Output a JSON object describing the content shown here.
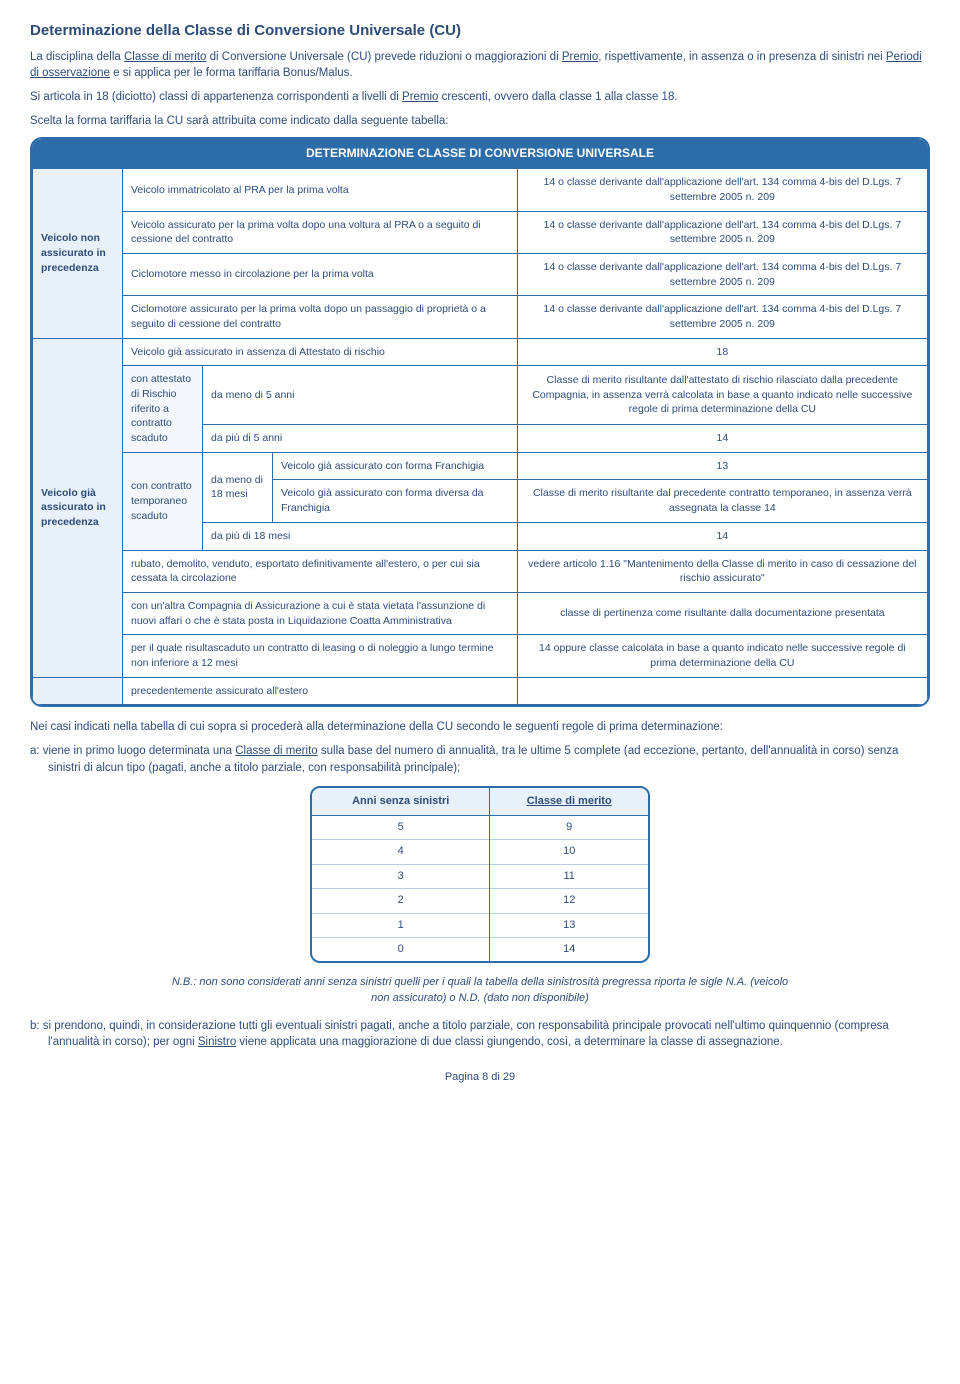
{
  "title": "Determinazione della Classe di Conversione Universale (CU)",
  "para1_a": "La disciplina della ",
  "para1_b": "Classe di merito",
  "para1_c": " di Conversione Universale (CU) prevede riduzioni o maggiorazioni di ",
  "para1_d": "Premio",
  "para1_e": ", rispettivamente, in assenza o in presenza di sinistri nei ",
  "para1_f": "Periodi di osservazione",
  "para1_g": " e si applica per le forma tariffaria Bonus/Malus.",
  "para2_a": "Si articola in 18 (diciotto) classi di appartenenza corrispondenti a livelli di ",
  "para2_b": "Premio",
  "para2_c": " crescenti, ovvero dalla classe 1 alla classe 18.",
  "para3": "Scelta la forma tariffaria la CU sarà attribuita come indicato dalla seguente tabella:",
  "tableHeader": "DETERMINAZIONE CLASSE DI CONVERSIONE UNIVERSALE",
  "sideA": "Veicolo non assicurato in precedenza",
  "sideB": "Veicolo già assicurato in precedenza",
  "rowA1_c": "Veicolo immatricolato al PRA per la prima volta",
  "rowA1_r": "14 o classe derivante dall'applicazione dell'art. 134 comma 4-bis del D.Lgs. 7 settembre 2005 n. 209",
  "rowA2_c": "Veicolo assicurato per la prima volta dopo una voltura al PRA o a seguito di cessione del contratto",
  "rowA2_r": "14 o classe derivante dall'applicazione dell'art. 134 comma 4-bis del D.Lgs. 7 settembre 2005 n. 209",
  "rowA3_c": "Ciclomotore messo in circolazione per la prima volta",
  "rowA3_r": "14 o classe derivante dall'applicazione dell'art. 134 comma 4-bis del D.Lgs. 7 settembre 2005 n. 209",
  "rowA4_c": "Ciclomotore assicurato per la prima volta dopo un passaggio di proprietà o a seguito di cessione del contratto",
  "rowA4_r": "14 o classe derivante dall'applicazione dell'art. 134 comma 4-bis del D.Lgs. 7 settembre 2005 n. 209",
  "rowB1_c": "Veicolo già assicurato in assenza di Attestato di rischio",
  "rowB1_r": "18",
  "subB2": "con attestato di Rischio riferito a contratto scaduto",
  "rowB2a_c": "da meno di 5 anni",
  "rowB2a_r": "Classe di merito risultante dall'attestato di rischio rilasciato dalla precedente Compagnia, in assenza verrà calcolata in base a quanto indicato nelle successive regole di prima determinazione della CU",
  "rowB2b_c": "da più di 5 anni",
  "rowB2b_r": "14",
  "subB3": "con contratto temporaneo scaduto",
  "rowB3a_c1": "da meno di 18 mesi",
  "rowB3a_c2": "Veicolo già assicurato con forma Franchigia",
  "rowB3a_r": "13",
  "rowB3b_c2": "Veicolo già assicurato con forma diversa da Franchigia",
  "rowB3b_r": "Classe di merito risultante dal precedente contratto temporaneo, in assenza verrà assegnata la classe 14",
  "rowB3c_c": "da più di 18 mesi",
  "rowB3c_r": "14",
  "rowB4_c": "rubato, demolito, venduto, esportato definitivamente all'estero, o per cui sia cessata la circolazione",
  "rowB4_r": "vedere articolo 1.16 \"Mantenimento della Classe di merito in caso di cessazione del rischio assicurato\"",
  "rowB5_c": "con un'altra Compagnia di Assicurazione a cui è stata vietata l'assunzione di nuovi affari o che è stata posta in Liquidazione Coatta Amministrativa",
  "rowB5_r": "classe di pertinenza come risultante dalla documentazione presentata",
  "rowB6_c": "per il quale risultascaduto un contratto di leasing o di noleggio a lungo termine non inferiore a 12 mesi",
  "rowB6_r": "14 oppure classe calcolata in base a quanto indicato nelle successive regole di prima determinazione della CU",
  "rowB7_c": "precedentemente assicurato all'estero",
  "rowB7_r": "",
  "belowIntro": "Nei casi indicati nella tabella di cui sopra si procederà alla determinazione della CU secondo le seguenti regole di prima determinazione:",
  "itemA_a": "a: viene in primo luogo determinata una ",
  "itemA_b": "Classe di merito",
  "itemA_c": " sulla base del numero di annualità, tra le ultime 5 complete (ad eccezione, pertanto, dell'annualità in corso) senza sinistri di alcun tipo (pagati, anche a titolo parziale, con responsabilità principale);",
  "smallH1": "Anni senza sinistri",
  "smallH2": "Classe di merito",
  "smallRows": [
    {
      "a": "5",
      "b": "9"
    },
    {
      "a": "4",
      "b": "10"
    },
    {
      "a": "3",
      "b": "11"
    },
    {
      "a": "2",
      "b": "12"
    },
    {
      "a": "1",
      "b": "13"
    },
    {
      "a": "0",
      "b": "14"
    }
  ],
  "note": "N.B.: non sono considerati anni senza sinistri quelli per i quali la tabella della sinistrosità pregressa riporta le sigle N.A. (veicolo non assicurato) o N.D. (dato non disponibile)",
  "itemB_a": "b: si prendono, quindi, in considerazione tutti gli eventuali sinistri pagati, anche a titolo parziale, con responsabilità principale provocati nell'ultimo quinquennio (compresa l'annualità in corso); per ogni ",
  "itemB_b": "Sinistro",
  "itemB_c": " viene applicata una maggiorazione di due classi giungendo, così, a determinare la classe di assegnazione.",
  "footer": "Pagina 8 di 29"
}
